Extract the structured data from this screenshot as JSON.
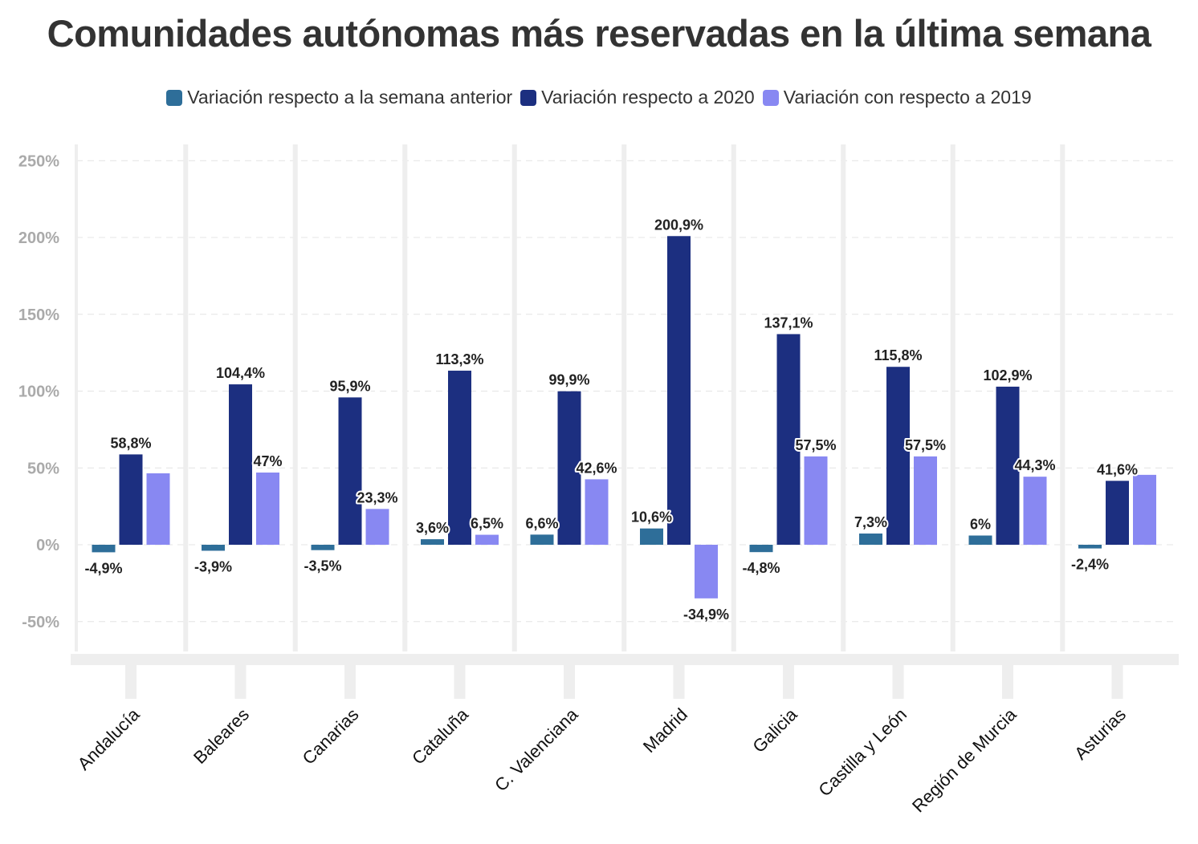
{
  "chart_data": {
    "type": "bar",
    "title": "Comunidades autónomas más reservadas en la última semana",
    "categories": [
      "Andalucía",
      "Baleares",
      "Canarias",
      "Cataluña",
      "C. Valenciana",
      "Madrid",
      "Galicia",
      "Castilla y León",
      "Región de Murcia",
      "Asturias"
    ],
    "series": [
      {
        "name": "Variación respecto a la semana anterior",
        "color": "#2e6e99",
        "values": [
          -4.9,
          -3.9,
          -3.5,
          3.6,
          6.6,
          10.6,
          -4.8,
          7.3,
          6,
          -2.4
        ],
        "labels": [
          "-4,9%",
          "-3,9%",
          "-3,5%",
          "3,6%",
          "6,6%",
          "10,6%",
          "-4,8%",
          "7,3%",
          "6%",
          "-2,4%"
        ]
      },
      {
        "name": "Variación respecto a 2020",
        "color": "#1c2f80",
        "values": [
          58.8,
          104.4,
          95.9,
          113.3,
          99.9,
          200.9,
          137.1,
          115.8,
          102.9,
          41.6
        ],
        "labels": [
          "58,8%",
          "104,4%",
          "95,9%",
          "113,3%",
          "99,9%",
          "200,9%",
          "137,1%",
          "115,8%",
          "102,9%",
          "41,6%"
        ]
      },
      {
        "name": "Variación con respecto a 2019",
        "color": "#8888f2",
        "values": [
          46.5,
          47,
          23.3,
          6.5,
          42.6,
          -34.9,
          57.5,
          57.5,
          44.3,
          45.5
        ],
        "labels": [
          "",
          "47%",
          "23,3%",
          "6,5%",
          "42,6%",
          "-34,9%",
          "57,5%",
          "57,5%",
          "44,3%",
          ""
        ]
      }
    ],
    "ylim": [
      -70,
      260
    ],
    "yticks": [
      -50,
      0,
      50,
      100,
      150,
      200,
      250
    ],
    "ytick_labels": [
      "-50%",
      "0%",
      "50%",
      "100%",
      "150%",
      "200%",
      "250%"
    ],
    "grid": true,
    "legend_position": "top"
  }
}
